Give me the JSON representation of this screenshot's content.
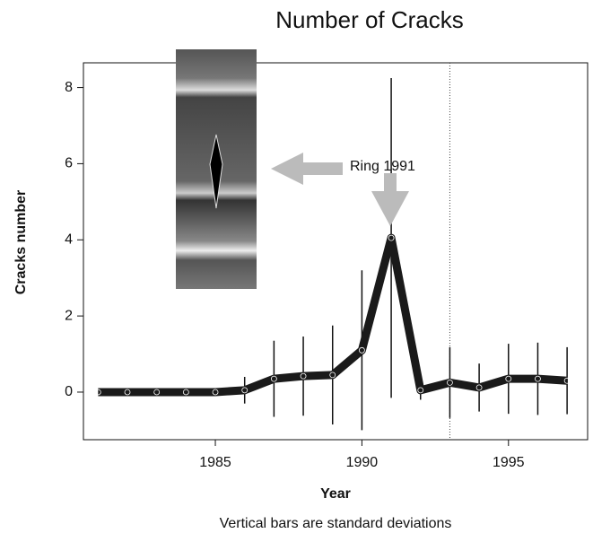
{
  "chart_data": {
    "type": "line",
    "title": "Number of Cracks",
    "xlabel": "Year",
    "ylabel": "Cracks number",
    "caption": "Vertical bars are standard deviations",
    "annotation": "Ring 1991",
    "x": [
      1981,
      1982,
      1983,
      1984,
      1985,
      1986,
      1987,
      1988,
      1989,
      1990,
      1991,
      1992,
      1993,
      1994,
      1995,
      1996,
      1997
    ],
    "series": [
      {
        "color": "#1a1a1a",
        "values": [
          0,
          0,
          0,
          0,
          0,
          0.05,
          0.35,
          0.42,
          0.45,
          1.1,
          4.05,
          0.05,
          0.25,
          0.12,
          0.35,
          0.35,
          0.3
        ],
        "errors": [
          0,
          0,
          0,
          0,
          0,
          0.35,
          1.0,
          1.04,
          1.3,
          2.1,
          4.2,
          0.25,
          0.93,
          0.63,
          0.92,
          0.95,
          0.88
        ]
      }
    ],
    "xlim": [
      1980.5,
      1997.7
    ],
    "ylim": [
      -1.25,
      8.65
    ],
    "xticks": [
      1985,
      1990,
      1995
    ],
    "yticks": [
      0,
      2,
      4,
      6,
      8
    ],
    "vline": 1993
  }
}
